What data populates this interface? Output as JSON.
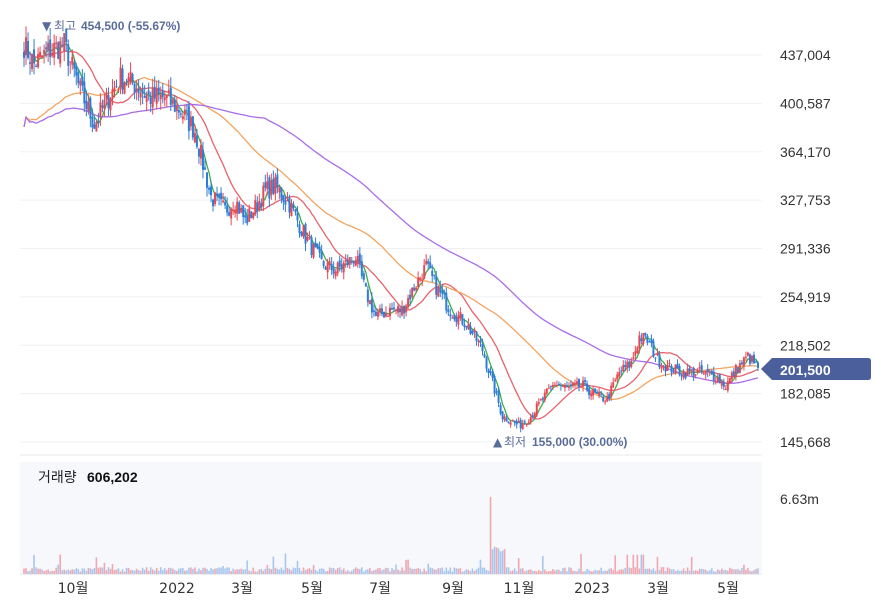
{
  "chart_data": {
    "type": "candlestick",
    "y_ticks": [
      "437,004",
      "400,587",
      "364,170",
      "327,753",
      "291,336",
      "254,919",
      "218,502",
      "182,085",
      "145,668"
    ],
    "ylim": [
      145668,
      454500
    ],
    "x_ticks": [
      "10월",
      "2022",
      "3월",
      "5월",
      "7월",
      "9월",
      "11월",
      "2023",
      "3월",
      "5월"
    ],
    "high_annotation": {
      "marker": "▼",
      "label": "최고",
      "value": "454,500 (-55.67%)"
    },
    "low_annotation": {
      "marker": "▲",
      "label": "최저",
      "value": "155,000 (30.00%)"
    },
    "current_price": {
      "label": "201,500",
      "value": 201500
    },
    "volume": {
      "label": "거래량",
      "value": "606,202",
      "axis_tick": "6.63m",
      "axis_max": 6630000
    },
    "close_path": [
      [
        0,
        445000
      ],
      [
        5,
        430000
      ],
      [
        12,
        440000
      ],
      [
        20,
        445000
      ],
      [
        28,
        410000
      ],
      [
        35,
        385000
      ],
      [
        42,
        405000
      ],
      [
        48,
        420000
      ],
      [
        55,
        415000
      ],
      [
        62,
        405000
      ],
      [
        70,
        405000
      ],
      [
        78,
        395000
      ],
      [
        85,
        380000
      ],
      [
        93,
        330000
      ],
      [
        100,
        320000
      ],
      [
        105,
        328000
      ],
      [
        110,
        312000
      ],
      [
        115,
        322000
      ],
      [
        120,
        335000
      ],
      [
        125,
        338000
      ],
      [
        132,
        325000
      ],
      [
        140,
        300000
      ],
      [
        148,
        280000
      ],
      [
        155,
        275000
      ],
      [
        160,
        280000
      ],
      [
        165,
        285000
      ],
      [
        170,
        258000
      ],
      [
        175,
        240000
      ],
      [
        182,
        245000
      ],
      [
        188,
        245000
      ],
      [
        195,
        265000
      ],
      [
        200,
        278000
      ],
      [
        205,
        262000
      ],
      [
        212,
        245000
      ],
      [
        220,
        235000
      ],
      [
        228,
        215000
      ],
      [
        234,
        185000
      ],
      [
        238,
        165000
      ],
      [
        242,
        162000
      ],
      [
        246,
        158000
      ],
      [
        252,
        165000
      ],
      [
        258,
        178000
      ],
      [
        264,
        190000
      ],
      [
        270,
        186000
      ],
      [
        278,
        188000
      ],
      [
        285,
        180000
      ],
      [
        290,
        178000
      ],
      [
        296,
        198000
      ],
      [
        302,
        205000
      ],
      [
        306,
        225000
      ],
      [
        310,
        222000
      ],
      [
        315,
        208000
      ],
      [
        320,
        202000
      ],
      [
        328,
        198000
      ],
      [
        336,
        198000
      ],
      [
        344,
        195000
      ],
      [
        349,
        188000
      ],
      [
        354,
        200000
      ],
      [
        360,
        210000
      ],
      [
        365,
        201500
      ]
    ],
    "ma_lines": [
      {
        "name": "ma5",
        "color": "#3fae49",
        "window": 5
      },
      {
        "name": "ma20",
        "color": "#e8626b",
        "window": 20
      },
      {
        "name": "ma60",
        "color": "#f4a460",
        "window": 60
      },
      {
        "name": "ma120",
        "color": "#a96ce8",
        "window": 120
      }
    ],
    "colors": {
      "up": "#e84855",
      "down": "#2e7dd7",
      "volume_up": "#f2a6ae",
      "volume_down": "#a9c7ec",
      "badge": "#4a5f9c"
    },
    "grid": true
  }
}
